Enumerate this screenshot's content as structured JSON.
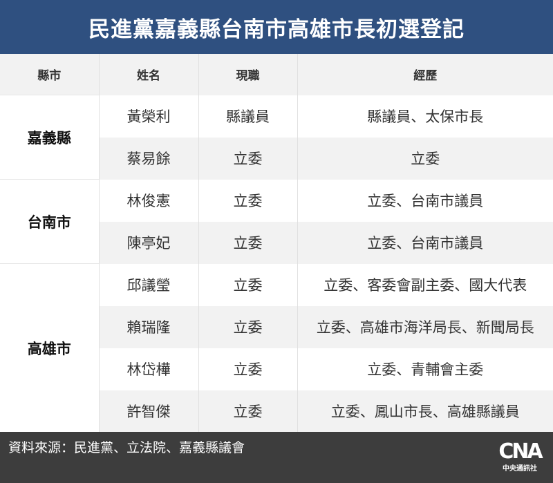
{
  "title": "民進黨嘉義縣台南市高雄市長初選登記",
  "table": {
    "headers": [
      "縣市",
      "姓名",
      "現職",
      "經歷"
    ],
    "groups": [
      {
        "county": "嘉義縣",
        "rows": [
          {
            "name": "黃榮利",
            "position": "縣議員",
            "experience": "縣議員、太保市長"
          },
          {
            "name": "蔡易餘",
            "position": "立委",
            "experience": "立委"
          }
        ]
      },
      {
        "county": "台南市",
        "rows": [
          {
            "name": "林俊憲",
            "position": "立委",
            "experience": "立委、台南市議員"
          },
          {
            "name": "陳亭妃",
            "position": "立委",
            "experience": "立委、台南市議員"
          }
        ]
      },
      {
        "county": "高雄市",
        "rows": [
          {
            "name": "邱議瑩",
            "position": "立委",
            "experience": "立委、客委會副主委、國大代表"
          },
          {
            "name": "賴瑞隆",
            "position": "立委",
            "experience": "立委、高雄市海洋局長、新聞局長"
          },
          {
            "name": "林岱樺",
            "position": "立委",
            "experience": "立委、青輔會主委"
          },
          {
            "name": "許智傑",
            "position": "立委",
            "experience": "立委、鳳山市長、高雄縣議員"
          }
        ]
      }
    ]
  },
  "footer": {
    "source": "資料來源：民進黨、立法院、嘉義縣議會",
    "logo_mark": "CNA",
    "logo_text": "中央通訊社"
  },
  "colors": {
    "header_bg": "#2f5080",
    "footer_bg": "#3d3d3d",
    "alt_row": "#f2f2f2"
  }
}
